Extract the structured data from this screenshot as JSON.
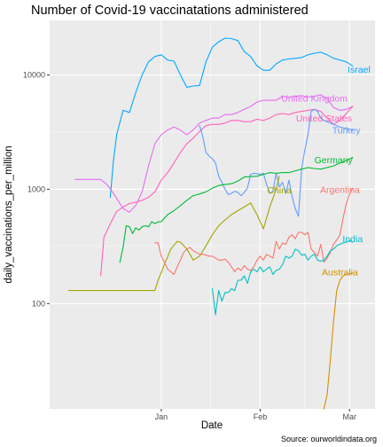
{
  "chart_data": {
    "type": "line",
    "title": "Number of Covid-19 vaccinatations administered",
    "xlabel": "Date",
    "ylabel": "daily_vaccinations_per_million",
    "caption": "Source: ourworldindata.org",
    "y_scale": "log10",
    "ylim": [
      12,
      30000
    ],
    "xlim": [
      -21,
      81
    ],
    "x_ticks": [
      {
        "value": 14,
        "label": "Jan"
      },
      {
        "value": 45,
        "label": "Feb"
      },
      {
        "value": 73,
        "label": "Mar"
      }
    ],
    "y_ticks": [
      {
        "value": 100,
        "label": "100"
      },
      {
        "value": 1000,
        "label": "1000"
      },
      {
        "value": 10000,
        "label": "10000"
      }
    ],
    "y_minor": [
      316,
      3162
    ],
    "x_minor": [
      29.5,
      59
    ],
    "series": [
      {
        "name": "Israel",
        "color": "#00a9ff",
        "label_x": 76,
        "label_y": 11200,
        "x": [
          -2,
          -1,
          0,
          2,
          4,
          6,
          8,
          10,
          12,
          14,
          16,
          18,
          20,
          22,
          24,
          26,
          28,
          30,
          32,
          34,
          36,
          38,
          40,
          42,
          44,
          46,
          48,
          50,
          52,
          54,
          56,
          58,
          60,
          62,
          64,
          66,
          68,
          70,
          72,
          74
        ],
        "y": [
          850,
          1800,
          3000,
          4900,
          4700,
          7000,
          10000,
          13000,
          14500,
          15000,
          13500,
          13200,
          10000,
          7800,
          8000,
          8100,
          13000,
          17500,
          19500,
          21000,
          20800,
          20000,
          16000,
          14500,
          12000,
          11000,
          11000,
          12500,
          13500,
          13800,
          14000,
          14200,
          15000,
          15500,
          15800,
          15000,
          14000,
          13500,
          13000,
          12000
        ]
      },
      {
        "name": "United Kingdom",
        "color": "#e76bf3",
        "label_x": 62,
        "label_y": 6300,
        "x": [
          -13,
          -9,
          -6,
          -5,
          -3,
          -1,
          2,
          4,
          6,
          8,
          10,
          12,
          14,
          16,
          18,
          20,
          22,
          24,
          26,
          28,
          30,
          32,
          34,
          36,
          38,
          40,
          42,
          44,
          46,
          48,
          50,
          52,
          54,
          56,
          58,
          60,
          62,
          64,
          66,
          68,
          70,
          72,
          74
        ],
        "y": [
          1220,
          1220,
          1220,
          1220,
          1100,
          920,
          680,
          630,
          720,
          950,
          1600,
          2500,
          3000,
          3300,
          3500,
          3300,
          3000,
          3300,
          3800,
          4000,
          4200,
          4200,
          4500,
          4500,
          4700,
          5000,
          5300,
          5800,
          6000,
          6000,
          6000,
          6500,
          6400,
          6500,
          6600,
          6400,
          6500,
          6700,
          6200,
          5200,
          4900,
          5000,
          5300
        ]
      },
      {
        "name": "United States",
        "color": "#ff62bc",
        "label_x": 65,
        "label_y": 4200,
        "x": [
          -5,
          -4,
          -2,
          0,
          2,
          4,
          6,
          8,
          10,
          12,
          14,
          16,
          18,
          20,
          22,
          24,
          26,
          28,
          30,
          32,
          34,
          36,
          38,
          40,
          42,
          44,
          46,
          48,
          50,
          52,
          54,
          56,
          58,
          60,
          62,
          64,
          66,
          68,
          70,
          72,
          74
        ],
        "y": [
          175,
          380,
          500,
          640,
          700,
          750,
          770,
          800,
          850,
          950,
          1200,
          1400,
          1700,
          2100,
          2500,
          2800,
          3200,
          3600,
          3700,
          3700,
          3800,
          4000,
          4000,
          3900,
          3900,
          4100,
          4000,
          4200,
          4500,
          4600,
          4500,
          4700,
          4800,
          4900,
          5000,
          4800,
          4200,
          3700,
          4000,
          4600,
          5300
        ]
      },
      {
        "name": "Turkey",
        "color": "#619cff",
        "label_x": 72,
        "label_y": 3300,
        "x": [
          26,
          27,
          28,
          29,
          30,
          31,
          32,
          33,
          34,
          35,
          36,
          37,
          38,
          39,
          40,
          41,
          42,
          43,
          44,
          45,
          46,
          47,
          48,
          49,
          50,
          51,
          52,
          53,
          54,
          55,
          56,
          57,
          58,
          59,
          60,
          61,
          62,
          63,
          64,
          65,
          66,
          67,
          68,
          69,
          70,
          71,
          72,
          73,
          74
        ],
        "y": [
          3600,
          2900,
          2100,
          1950,
          1850,
          1700,
          1300,
          1150,
          1000,
          900,
          920,
          960,
          940,
          880,
          940,
          1020,
          1350,
          1380,
          1370,
          1350,
          1380,
          1100,
          920,
          960,
          1380,
          1050,
          1150,
          920,
          1200,
          860,
          680,
          580,
          1500,
          2200,
          3000,
          4800,
          5000,
          4800,
          4200,
          4000,
          3900,
          3800,
          3700,
          3600,
          3500,
          3450,
          3400,
          3350,
          3300
        ]
      },
      {
        "name": "Germany",
        "color": "#00ba38",
        "label_x": 68,
        "label_y": 1820,
        "x": [
          1,
          2,
          3,
          4,
          5,
          6,
          7,
          8,
          9,
          10,
          11,
          12,
          13,
          14,
          15,
          16,
          18,
          20,
          22,
          24,
          26,
          28,
          30,
          32,
          34,
          36,
          38,
          40,
          42,
          44,
          46,
          48,
          50,
          52,
          54,
          56,
          58,
          60,
          62,
          64,
          66,
          68,
          70,
          72,
          74
        ],
        "y": [
          230,
          310,
          480,
          470,
          410,
          460,
          440,
          470,
          480,
          470,
          520,
          500,
          520,
          520,
          560,
          600,
          650,
          720,
          800,
          880,
          910,
          950,
          1020,
          1080,
          1100,
          1120,
          1180,
          1280,
          1290,
          1300,
          1350,
          1400,
          1380,
          1400,
          1400,
          1450,
          1500,
          1550,
          1520,
          1500,
          1550,
          1600,
          1700,
          1780,
          1900
        ]
      },
      {
        "name": "China",
        "color": "#a3a500",
        "label_x": 51,
        "label_y": 990,
        "x": [
          -15,
          -12,
          -9,
          -6,
          -3,
          0,
          3,
          6,
          9,
          12,
          13,
          15,
          17,
          19,
          20,
          22,
          23,
          24,
          26,
          28,
          30,
          32,
          34,
          36,
          38,
          40,
          42,
          44,
          46,
          48,
          50,
          51
        ],
        "y": [
          130,
          130,
          130,
          130,
          130,
          130,
          130,
          130,
          130,
          130,
          160,
          220,
          300,
          350,
          345,
          300,
          270,
          240,
          260,
          320,
          400,
          480,
          540,
          600,
          650,
          700,
          760,
          600,
          450,
          700,
          1000,
          1300
        ]
      },
      {
        "name": "Argentina",
        "color": "#f8766d",
        "label_x": 70,
        "label_y": 1000,
        "x": [
          12,
          13,
          14,
          15,
          16,
          17,
          18,
          19,
          20,
          21,
          22,
          23,
          24,
          25,
          26,
          27,
          28,
          29,
          30,
          31,
          32,
          33,
          34,
          35,
          36,
          37,
          38,
          39,
          40,
          41,
          42,
          43,
          44,
          45,
          46,
          47,
          48,
          49,
          50,
          51,
          52,
          53,
          54,
          55,
          56,
          57,
          58,
          59,
          60,
          61,
          62,
          63,
          64,
          65,
          66,
          67,
          68,
          69,
          70,
          71,
          72,
          73,
          74
        ],
        "y": [
          340,
          340,
          260,
          230,
          200,
          190,
          180,
          210,
          240,
          280,
          300,
          310,
          290,
          280,
          270,
          270,
          265,
          260,
          260,
          250,
          240,
          240,
          245,
          230,
          210,
          190,
          205,
          195,
          215,
          200,
          195,
          210,
          240,
          260,
          240,
          270,
          260,
          250,
          350,
          300,
          340,
          330,
          380,
          400,
          370,
          420,
          420,
          400,
          420,
          300,
          280,
          260,
          330,
          230,
          250,
          280,
          330,
          360,
          400,
          560,
          750,
          900,
          1020
        ]
      },
      {
        "name": "India",
        "color": "#00bfc4",
        "label_x": 74,
        "label_y": 370,
        "x": [
          30,
          31,
          32,
          33,
          34,
          35,
          36,
          37,
          38,
          39,
          40,
          41,
          42,
          43,
          44,
          45,
          46,
          47,
          48,
          49,
          50,
          51,
          52,
          53,
          54,
          55,
          56,
          57,
          58,
          59,
          60,
          61,
          62,
          63,
          64,
          65,
          66,
          67,
          68,
          69,
          70,
          71,
          72,
          73,
          74
        ],
        "y": [
          135,
          80,
          130,
          105,
          125,
          125,
          135,
          130,
          160,
          160,
          175,
          150,
          190,
          200,
          190,
          210,
          190,
          200,
          210,
          180,
          195,
          200,
          220,
          260,
          250,
          260,
          300,
          290,
          265,
          270,
          240,
          260,
          270,
          240,
          235,
          240,
          260,
          290,
          300,
          320,
          330,
          340,
          345,
          355,
          345
        ]
      },
      {
        "name": "Australia",
        "color": "#d39200",
        "label_x": 70,
        "label_y": 190,
        "x": [
          65,
          66,
          67,
          68,
          69,
          70,
          71,
          72,
          73,
          74
        ],
        "y": [
          12,
          16,
          32,
          70,
          130,
          160,
          175,
          180,
          182,
          185
        ]
      }
    ]
  }
}
